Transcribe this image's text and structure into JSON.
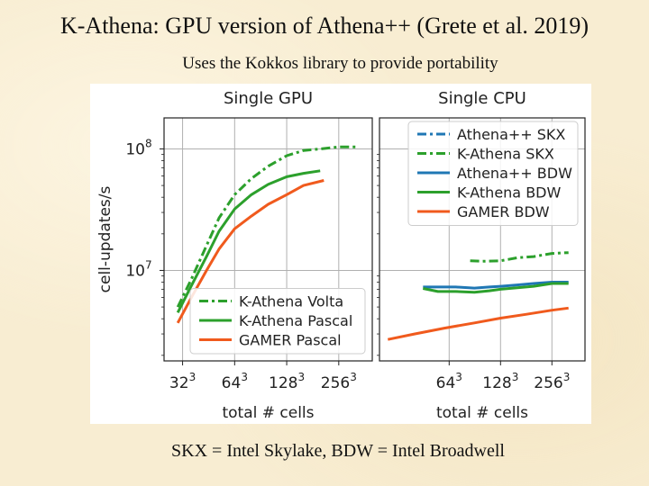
{
  "slide": {
    "title": "K-Athena: GPU version of Athena++ (Grete et al. 2019)",
    "subtitle": "Uses the Kokkos library to provide portability",
    "footer": "SKX = Intel Skylake, BDW = Intel Broadwell"
  },
  "chart_data": [
    {
      "type": "line",
      "title": "Single GPU",
      "xlabel": "total # cells",
      "ylabel": "cell-updates/s",
      "xscale": "log2",
      "yscale": "log",
      "xlim": [
        25,
        400
      ],
      "ylim": [
        1800000,
        180000000
      ],
      "xticks": [
        {
          "base": "32",
          "exp": "3",
          "value": 32
        },
        {
          "base": "64",
          "exp": "3",
          "value": 64
        },
        {
          "base": "128",
          "exp": "3",
          "value": 128
        },
        {
          "base": "256",
          "exp": "3",
          "value": 256
        }
      ],
      "yticks": [
        {
          "base": "10",
          "exp": "7",
          "value": 10000000
        },
        {
          "base": "10",
          "exp": "8",
          "value": 100000000
        }
      ],
      "grid": true,
      "legend_position": "bottom-right",
      "series": [
        {
          "name": "K-Athena Volta",
          "color": "#2ca02c",
          "dash": "dashdot",
          "x": [
            30,
            36,
            44,
            52,
            64,
            80,
            100,
            128,
            160,
            200,
            256,
            320
          ],
          "y": [
            5000000,
            8500000,
            16000000,
            27000000,
            42000000,
            57000000,
            72000000,
            88000000,
            97000000,
            100000000,
            104000000,
            104000000
          ]
        },
        {
          "name": "K-Athena Pascal",
          "color": "#2ca02c",
          "dash": "solid",
          "x": [
            30,
            36,
            44,
            52,
            64,
            80,
            100,
            128,
            160,
            200
          ],
          "y": [
            4500000,
            7500000,
            13000000,
            21000000,
            32000000,
            42000000,
            51000000,
            59000000,
            63000000,
            66000000
          ]
        },
        {
          "name": "GAMER Pascal",
          "color": "#f05a1d",
          "dash": "solid",
          "x": [
            30,
            36,
            44,
            52,
            64,
            80,
            100,
            128,
            160,
            210
          ],
          "y": [
            3700000,
            6000000,
            10000000,
            15000000,
            22000000,
            28000000,
            35000000,
            42000000,
            50000000,
            55000000
          ]
        }
      ]
    },
    {
      "type": "line",
      "title": "Single CPU",
      "xlabel": "total # cells",
      "ylabel": "",
      "xscale": "log2",
      "yscale": "log",
      "xlim": [
        25,
        400
      ],
      "ylim": [
        1800000,
        180000000
      ],
      "xticks": [
        {
          "base": "64",
          "exp": "3",
          "value": 64
        },
        {
          "base": "128",
          "exp": "3",
          "value": 128
        },
        {
          "base": "256",
          "exp": "3",
          "value": 256
        }
      ],
      "grid": true,
      "legend_position": "top-right",
      "series": [
        {
          "name": "Athena++ SKX",
          "color": "#1f77b4",
          "dash": "dashdot",
          "x": [],
          "y": []
        },
        {
          "name": "K-Athena SKX",
          "color": "#2ca02c",
          "dash": "dashdot",
          "x": [
            85,
            100,
            128,
            160,
            200,
            256,
            320
          ],
          "y": [
            12000000,
            11900000,
            12000000,
            12700000,
            13000000,
            13800000,
            14000000
          ]
        },
        {
          "name": "Athena++ BDW",
          "color": "#1f77b4",
          "dash": "solid",
          "x": [
            45,
            55,
            70,
            90,
            110,
            128,
            160,
            200,
            256,
            320
          ],
          "y": [
            7300000,
            7300000,
            7300000,
            7150000,
            7300000,
            7400000,
            7600000,
            7800000,
            8000000,
            8000000
          ]
        },
        {
          "name": "K-Athena BDW",
          "color": "#2ca02c",
          "dash": "solid",
          "x": [
            45,
            55,
            70,
            90,
            110,
            128,
            160,
            200,
            256,
            320
          ],
          "y": [
            7100000,
            6700000,
            6700000,
            6600000,
            6800000,
            7000000,
            7200000,
            7400000,
            7800000,
            7800000
          ]
        },
        {
          "name": "GAMER BDW",
          "color": "#f05a1d",
          "dash": "solid",
          "x": [
            28,
            40,
            60,
            90,
            128,
            180,
            256,
            320
          ],
          "y": [
            2700000,
            3000000,
            3350000,
            3700000,
            4050000,
            4350000,
            4700000,
            4900000
          ]
        }
      ]
    }
  ]
}
